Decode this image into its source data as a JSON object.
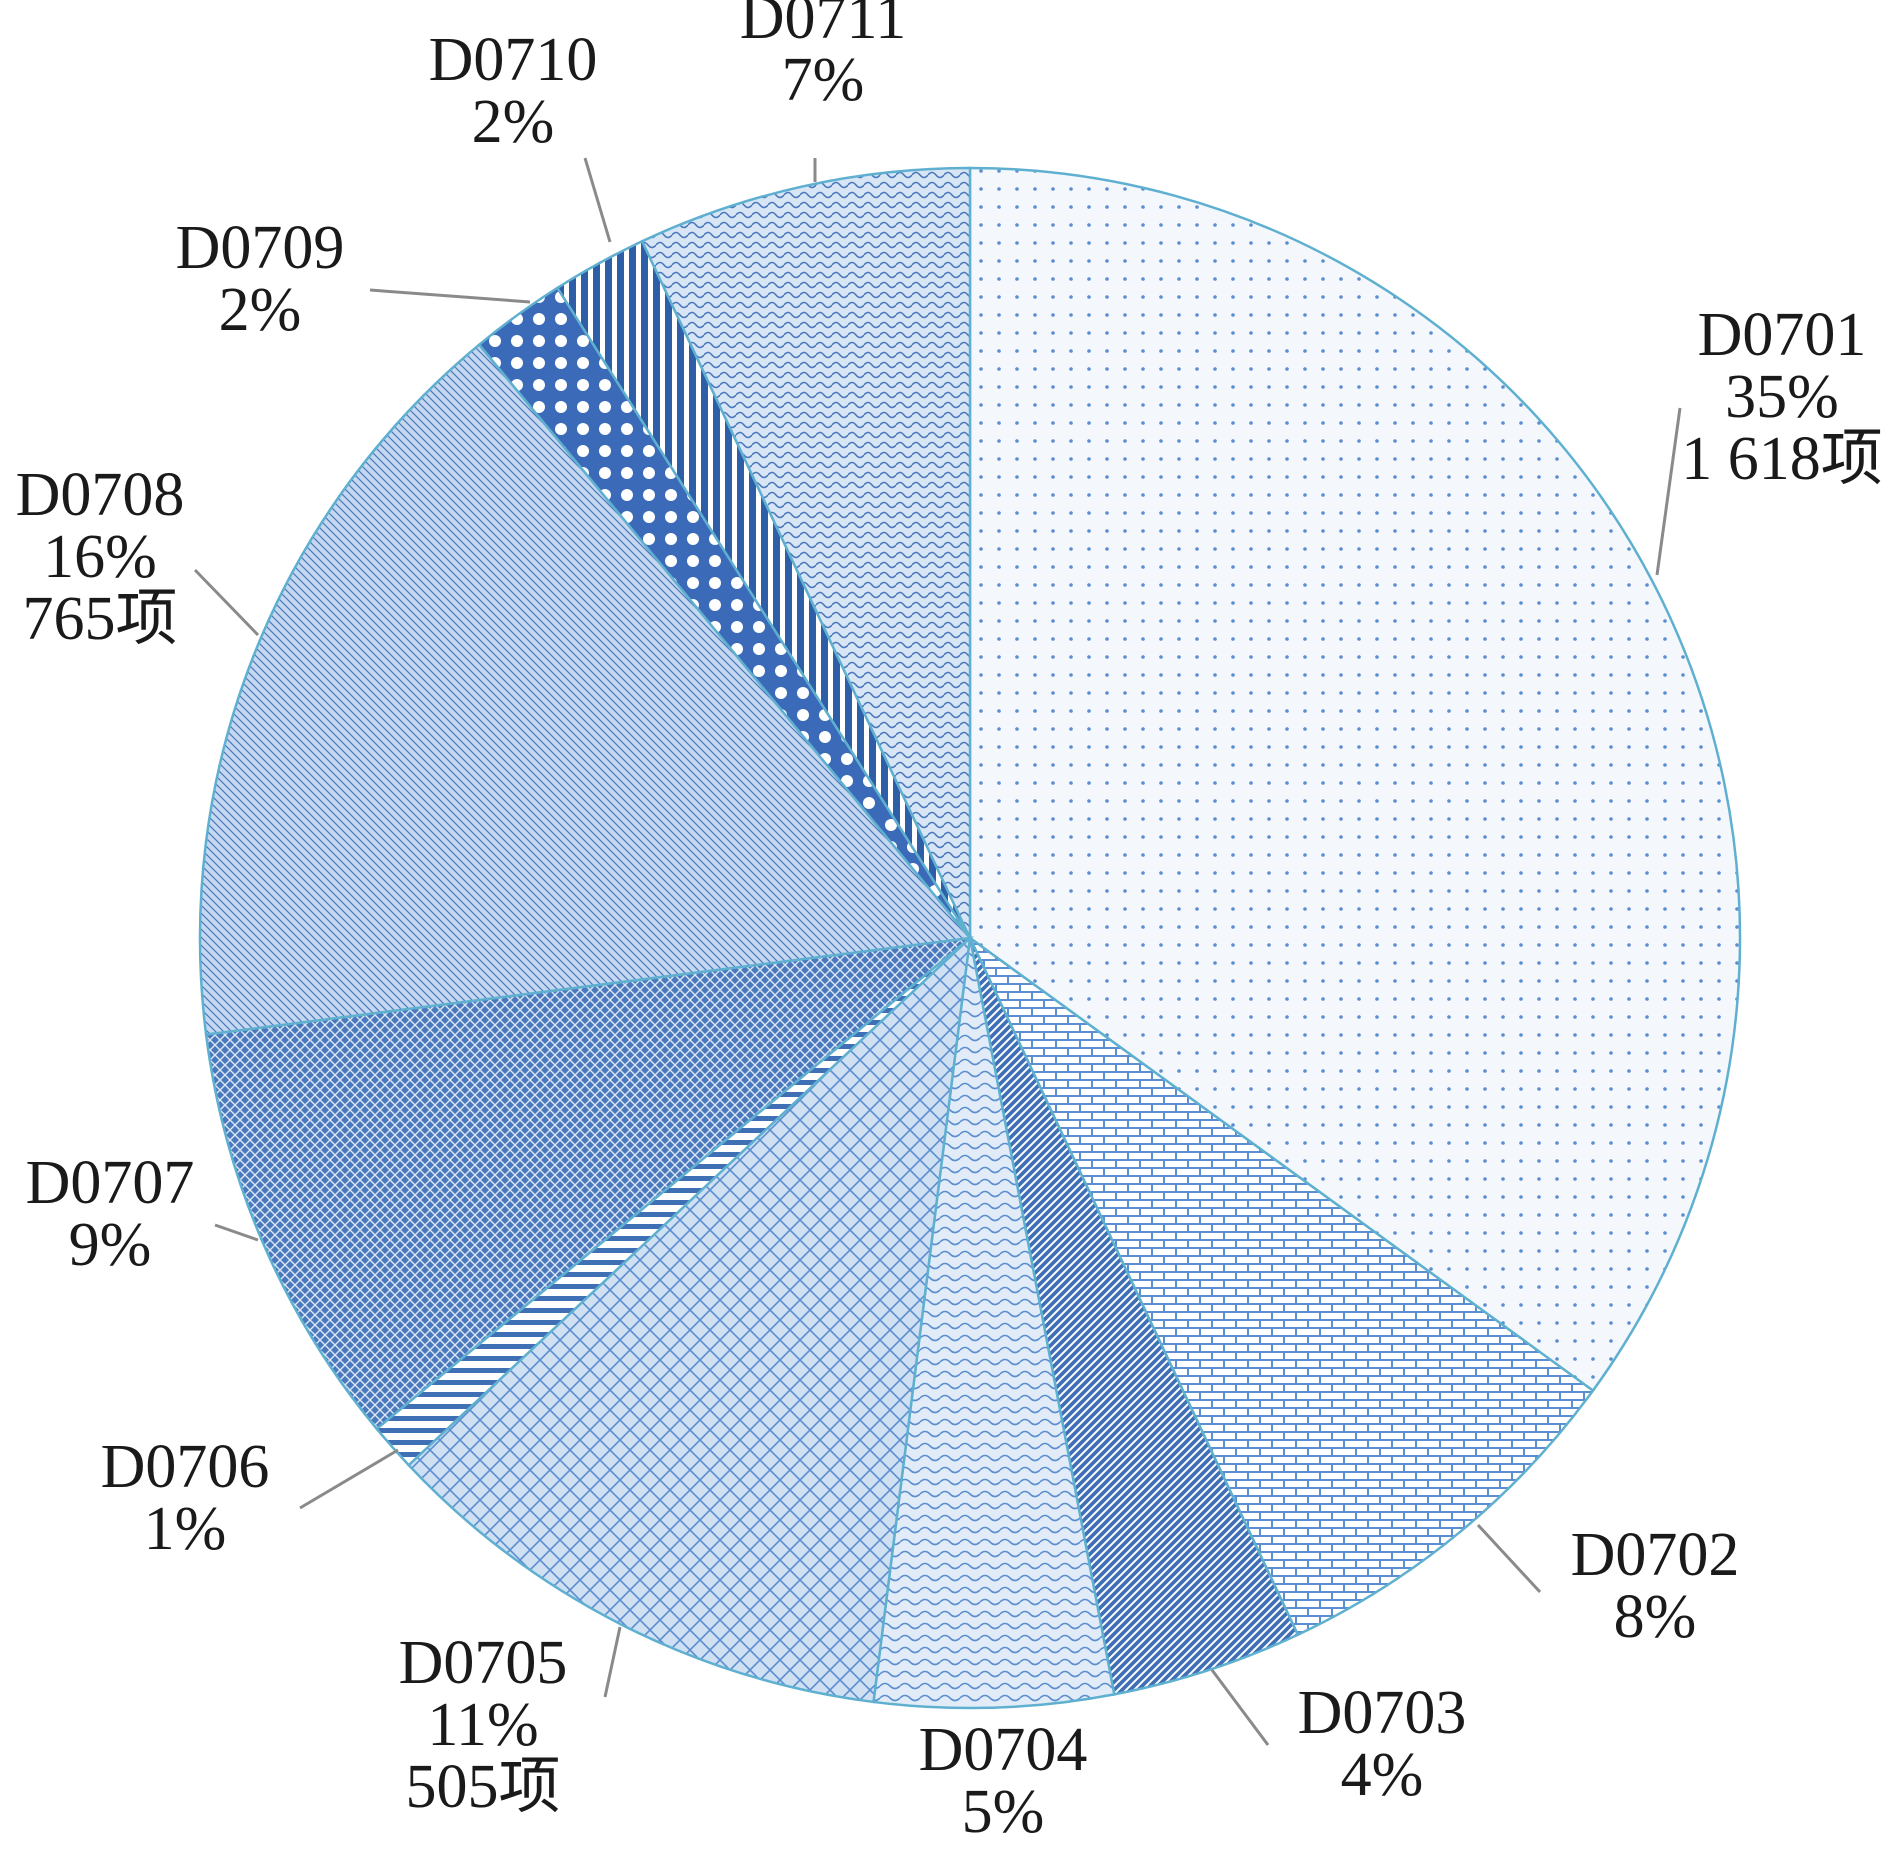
{
  "chart_data": {
    "type": "pie",
    "title": "",
    "start": "12 o'clock",
    "direction": "clockwise",
    "slices": [
      {
        "label": "D0701",
        "percent": "35%",
        "value": 35,
        "count": "1 618项"
      },
      {
        "label": "D0702",
        "percent": "8%",
        "value": 8
      },
      {
        "label": "D0703",
        "percent": "4%",
        "value": 4
      },
      {
        "label": "D0704",
        "percent": "5%",
        "value": 5
      },
      {
        "label": "D0705",
        "percent": "11%",
        "value": 11,
        "count": "505项"
      },
      {
        "label": "D0706",
        "percent": "1%",
        "value": 1
      },
      {
        "label": "D0707",
        "percent": "9%",
        "value": 9
      },
      {
        "label": "D0708",
        "percent": "16%",
        "value": 16,
        "count": "765项"
      },
      {
        "label": "D0709",
        "percent": "2%",
        "value": 2
      },
      {
        "label": "D0710",
        "percent": "2%",
        "value": 2
      },
      {
        "label": "D0711",
        "percent": "7%",
        "value": 7
      }
    ],
    "colors": {
      "outline": "#5fb0d0",
      "fills": [
        "#f4f8fc",
        "#5b8ed0",
        "#3f6fb5",
        "#e2ecf8",
        "#cfe0f3",
        "#ffffff",
        "#4a78bd",
        "#c5d8ef",
        "#3a6ab8",
        "#2f5ea8",
        "#d7e5f5"
      ],
      "marks": [
        "#5b8ed0",
        "#ffffff",
        "#ffffff",
        "#5b8ed0",
        "#5b8ed0",
        "#3f6fb5",
        "#dce8f6",
        "#4a78bd",
        "#ffffff",
        "#ffffff",
        "#4a78bd"
      ]
    },
    "legend": "none (labels beside slices with leader lines)"
  }
}
